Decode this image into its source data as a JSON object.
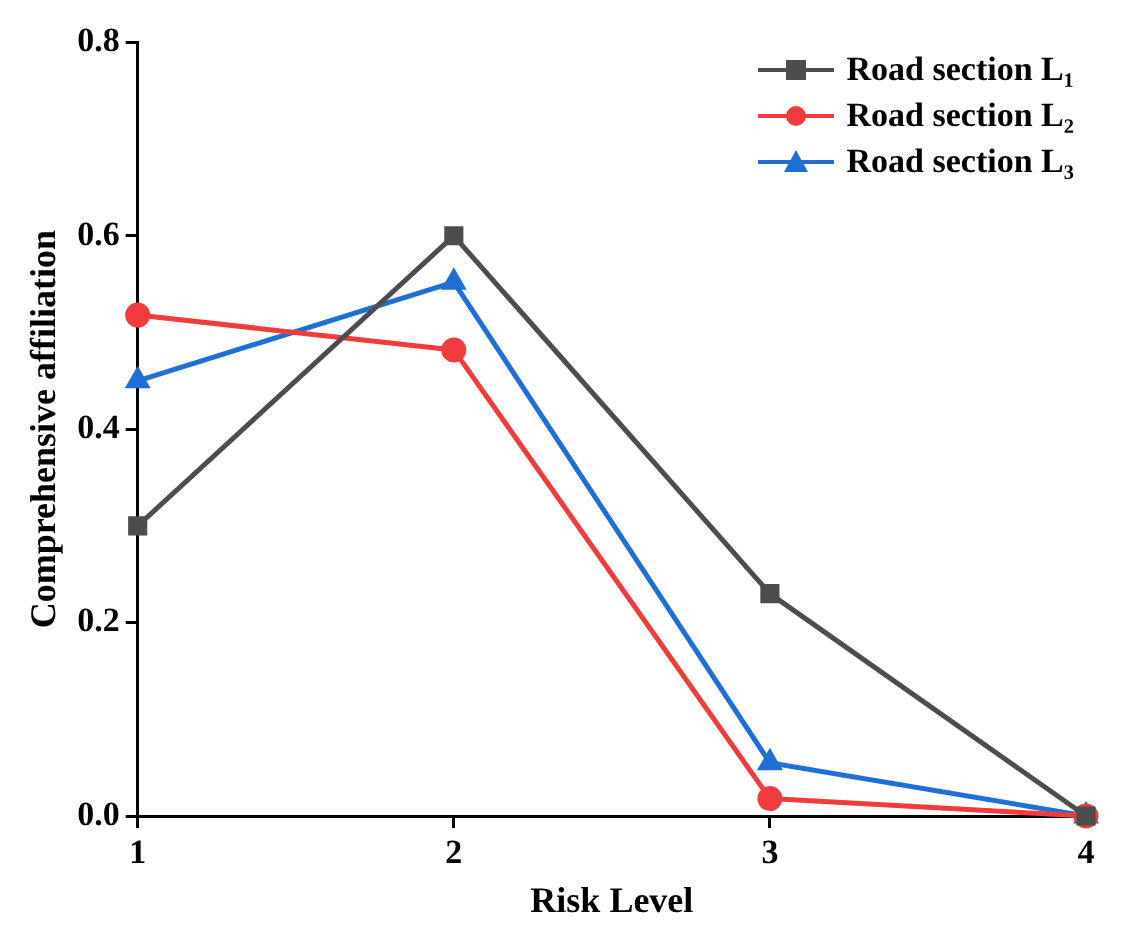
{
  "chart_data": {
    "type": "line",
    "xlabel": "Risk Level",
    "ylabel": "Comprehensive affiliation",
    "x": [
      1,
      2,
      3,
      4
    ],
    "series": [
      {
        "name": "Road section L₁",
        "color": "#4d4d4d",
        "values": [
          0.3,
          0.6,
          0.23,
          0.0
        ],
        "marker": "square"
      },
      {
        "name": "Road section L₂",
        "color": "#f03c3c",
        "values": [
          0.518,
          0.482,
          0.018,
          0.0
        ],
        "marker": "circle"
      },
      {
        "name": "Road section L₃",
        "color": "#1f6fd6",
        "values": [
          0.45,
          0.552,
          0.055,
          0.0
        ],
        "marker": "triangle"
      }
    ],
    "xlim": [
      1,
      4
    ],
    "xticks": [
      1,
      2,
      3,
      4
    ],
    "ylim": [
      0,
      0.8
    ],
    "yticks": [
      {
        "value": 0,
        "label": "0.0"
      },
      {
        "value": 0.2,
        "label": "0.2"
      },
      {
        "value": 0.4,
        "label": "0.4"
      },
      {
        "value": 0.6,
        "label": "0.6"
      },
      {
        "value": 0.8,
        "label": "0.8"
      }
    ],
    "grid": false,
    "legend": "top right",
    "line_style": "solid"
  }
}
